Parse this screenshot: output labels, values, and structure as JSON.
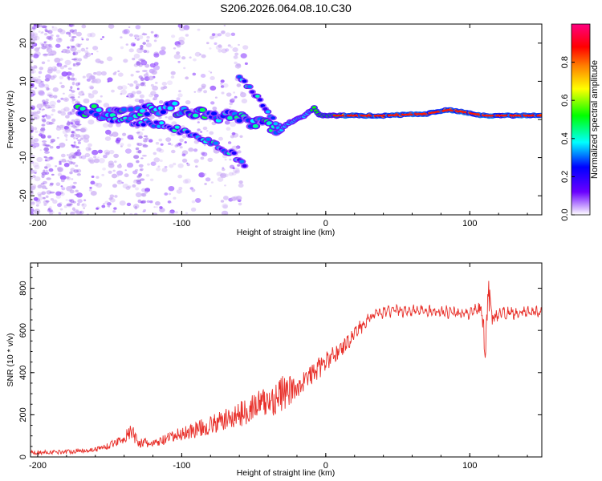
{
  "chart_data": [
    {
      "type": "heatmap",
      "title": "S206.2026.064.08.10.C30",
      "xlabel": "Height of straight line (km)",
      "ylabel": "Frequency (Hz)",
      "xlim": [
        -205,
        150
      ],
      "ylim": [
        -25,
        25
      ],
      "x_ticks": [
        -200,
        -100,
        0,
        100
      ],
      "y_ticks": [
        -20,
        -10,
        0,
        10,
        20
      ],
      "colorbar": {
        "label": "Normalized spectral amplitude",
        "range": [
          0,
          1
        ],
        "ticks": [
          "0.0",
          "0.2",
          "0.4",
          "0.6",
          "0.8"
        ],
        "colors": [
          "#ffffff",
          "#6a00ff",
          "#0000ff",
          "#00ffff",
          "#00ff00",
          "#ffff00",
          "#ff8000",
          "#ff0000",
          "#ff0080"
        ]
      },
      "features": {
        "carrier_line": [
          [
            -172,
            3
          ],
          [
            -150,
            1
          ],
          [
            -130,
            2
          ],
          [
            -110,
            3
          ],
          [
            -90,
            2
          ],
          [
            -70,
            1
          ],
          [
            -50,
            -1
          ],
          [
            -38,
            -2
          ],
          [
            -32,
            -3
          ],
          [
            -26,
            -1
          ],
          [
            -15,
            1
          ],
          [
            -8,
            3
          ],
          [
            -4,
            1
          ],
          [
            0,
            1
          ],
          [
            40,
            1
          ],
          [
            70,
            1.5
          ],
          [
            85,
            2.5
          ],
          [
            95,
            2
          ],
          [
            110,
            1
          ],
          [
            150,
            1
          ]
        ],
        "branch_lower": [
          [
            -150,
            0
          ],
          [
            -120,
            -1
          ],
          [
            -100,
            -3
          ],
          [
            -80,
            -6
          ],
          [
            -65,
            -9
          ],
          [
            -55,
            -12
          ]
        ],
        "branch_upper": [
          [
            -60,
            11
          ],
          [
            -50,
            7
          ],
          [
            -42,
            3
          ],
          [
            -36,
            0
          ],
          [
            -32,
            -3
          ]
        ]
      }
    },
    {
      "type": "line",
      "xlabel": "Height of straight line (km)",
      "ylabel": "SNR (10 * v/v)",
      "xlim": [
        -205,
        150
      ],
      "ylim": [
        0,
        920
      ],
      "x_ticks": [
        -200,
        -100,
        0,
        100
      ],
      "y_ticks": [
        0,
        200,
        400,
        600,
        800
      ],
      "color": "#e8302a",
      "series": [
        {
          "name": "SNR",
          "x": [
            -205,
            -180,
            -160,
            -150,
            -140,
            -135,
            -130,
            -120,
            -100,
            -80,
            -60,
            -50,
            -40,
            -30,
            -22,
            -20,
            -15,
            -5,
            5,
            15,
            20,
            25,
            30,
            40,
            60,
            80,
            100,
            108,
            111,
            113,
            115,
            120,
            150
          ],
          "y": [
            20,
            25,
            35,
            55,
            90,
            120,
            70,
            60,
            110,
            150,
            200,
            240,
            260,
            300,
            320,
            330,
            360,
            420,
            480,
            540,
            590,
            620,
            660,
            690,
            695,
            690,
            680,
            700,
            500,
            820,
            650,
            680,
            690
          ],
          "noise": [
            10,
            10,
            12,
            15,
            25,
            40,
            25,
            20,
            35,
            45,
            60,
            70,
            80,
            90,
            60,
            50,
            50,
            50,
            45,
            40,
            30,
            25,
            20,
            18,
            18,
            18,
            18,
            30,
            80,
            100,
            30,
            18,
            18
          ]
        }
      ]
    }
  ]
}
